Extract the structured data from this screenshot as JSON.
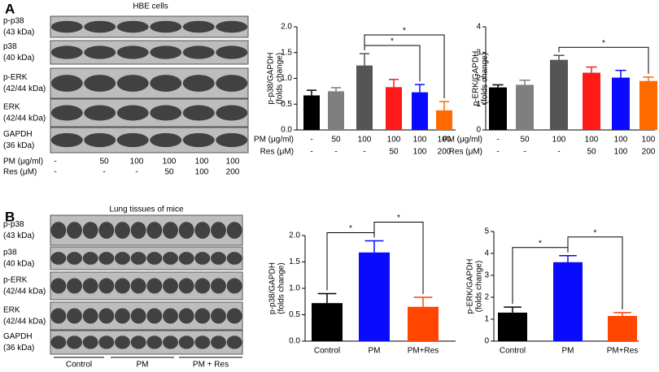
{
  "panel_a": {
    "label": "A",
    "title": "HBE cells",
    "blots": [
      {
        "name": "p-p38",
        "size": "(43 kDa)"
      },
      {
        "name": "p38",
        "size": "(40 kDa)"
      },
      {
        "name": "p-ERK",
        "size": "(42/44 kDa)"
      },
      {
        "name": "ERK",
        "size": "(42/44 kDa)"
      },
      {
        "name": "GAPDH",
        "size": "(36 kDa)"
      }
    ],
    "conditions": [
      {
        "name": "PM (μg/ml)",
        "values": [
          "-",
          "50",
          "100",
          "100",
          "100",
          "100"
        ]
      },
      {
        "name": "Res (μM)",
        "values": [
          "-",
          "-",
          "-",
          "50",
          "100",
          "200"
        ]
      }
    ]
  },
  "panel_b": {
    "label": "B",
    "title": "Lung tissues of mice",
    "blots": [
      {
        "name": "p-p38",
        "size": "(43 kDa)"
      },
      {
        "name": "p38",
        "size": "(40 kDa)"
      },
      {
        "name": "p-ERK",
        "size": "(42/44 kDa)"
      },
      {
        "name": "ERK",
        "size": "(42/44 kDa)"
      },
      {
        "name": "GAPDH",
        "size": "(36 kDa)"
      }
    ],
    "groups": [
      "Control",
      "PM",
      "PM + Res"
    ]
  },
  "chart_data": [
    {
      "type": "bar",
      "y_label": [
        "p-p38/GAPDH",
        "(folds change)"
      ],
      "categories": [
        null,
        null,
        null,
        null,
        null,
        null
      ],
      "x_table": [
        {
          "name": "PM (μg/ml)",
          "values": [
            "-",
            "50",
            "100",
            "100",
            "100",
            "100"
          ]
        },
        {
          "name": "Res (μM)",
          "values": [
            "-",
            "-",
            "-",
            "50",
            "100",
            "200"
          ]
        }
      ],
      "values": [
        0.67,
        0.75,
        1.25,
        0.83,
        0.73,
        0.38
      ],
      "errors": [
        0.1,
        0.07,
        0.23,
        0.15,
        0.15,
        0.17
      ],
      "colors": [
        "#000000",
        "#7f7f7f",
        "#555555",
        "#ff1a1a",
        "#0a0aff",
        "#ff6a00"
      ],
      "ylim": [
        0,
        2
      ],
      "yticks": [
        {
          "value": 0,
          "label": "0.0"
        },
        {
          "value": 0.5,
          "label": "0.5"
        },
        {
          "value": 1,
          "label": "1.0"
        },
        {
          "value": 1.5,
          "label": "1.5"
        },
        {
          "value": 2,
          "label": "2.0"
        }
      ],
      "significance": [
        {
          "from": 2,
          "to": 4,
          "label": "*"
        },
        {
          "from": 2,
          "to": 5,
          "label": "*"
        }
      ]
    },
    {
      "type": "bar",
      "y_label": [
        "p-ERK/GAPDH",
        "(folds change)"
      ],
      "categories": [
        null,
        null,
        null,
        null,
        null,
        null
      ],
      "x_table": [
        {
          "name": "PM (μg/ml)",
          "values": [
            "-",
            "50",
            "100",
            "100",
            "100",
            "100"
          ]
        },
        {
          "name": "Res (μM)",
          "values": [
            "-",
            "-",
            "-",
            "50",
            "100",
            "200"
          ]
        }
      ],
      "values": [
        1.65,
        1.75,
        2.72,
        2.22,
        2.03,
        1.9
      ],
      "errors": [
        0.1,
        0.18,
        0.17,
        0.22,
        0.28,
        0.15
      ],
      "colors": [
        "#000000",
        "#7f7f7f",
        "#555555",
        "#ff1a1a",
        "#0a0aff",
        "#ff6a00"
      ],
      "ylim": [
        0,
        4
      ],
      "yticks": [
        0,
        1,
        2,
        3,
        4
      ],
      "significance": [
        {
          "from": 2,
          "to": 5,
          "label": "*"
        }
      ]
    },
    {
      "type": "bar",
      "y_label": [
        "p-p38/GAPDH",
        "(folds change)"
      ],
      "categories": [
        "Control",
        "PM",
        "PM+Res"
      ],
      "values": [
        0.72,
        1.68,
        0.65
      ],
      "errors": [
        0.18,
        0.22,
        0.18
      ],
      "colors": [
        "#000000",
        "#0a0aff",
        "#ff4500"
      ],
      "ylim": [
        0,
        2
      ],
      "yticks": [
        {
          "value": 0,
          "label": "0.0"
        },
        {
          "value": 0.5,
          "label": "0.5"
        },
        {
          "value": 1,
          "label": "1.0"
        },
        {
          "value": 1.5,
          "label": "1.5"
        },
        {
          "value": 2,
          "label": "2.0"
        }
      ],
      "significance": [
        {
          "from": 0,
          "to": 1,
          "label": "*"
        },
        {
          "from": 1,
          "to": 2,
          "label": "*"
        }
      ]
    },
    {
      "type": "bar",
      "y_label": [
        "p-ERK/GAPDH",
        "(folds change)"
      ],
      "categories": [
        "Control",
        "PM",
        "PM+Res"
      ],
      "values": [
        1.3,
        3.6,
        1.15
      ],
      "errors": [
        0.25,
        0.3,
        0.15
      ],
      "colors": [
        "#000000",
        "#0a0aff",
        "#ff4500"
      ],
      "ylim": [
        0,
        5
      ],
      "yticks": [
        0,
        1,
        2,
        3,
        4,
        5
      ],
      "significance": [
        {
          "from": 0,
          "to": 1,
          "label": "*"
        },
        {
          "from": 1,
          "to": 2,
          "label": "*"
        }
      ]
    }
  ]
}
